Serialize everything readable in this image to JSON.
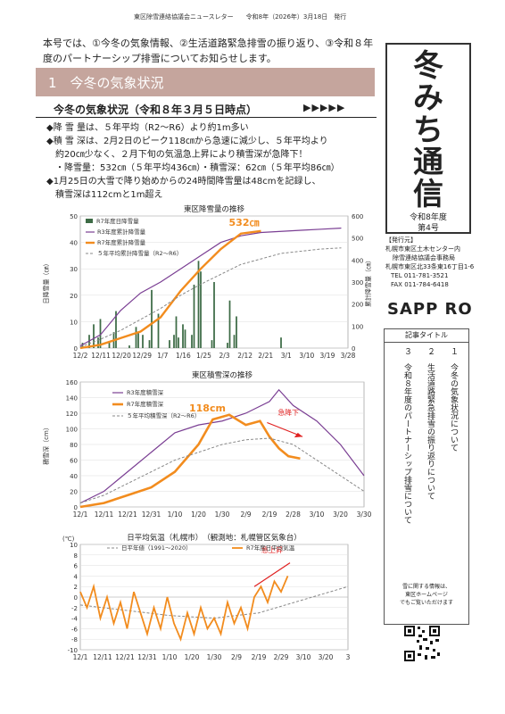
{
  "header": {
    "text": "東区除雪連絡協議会ニュースレター　　令和8年（2026年）3月18日　発行"
  },
  "intro": {
    "line1": "本号では、①今冬の気象情報、②生活道路緊急排雪の振り返り、③令和８年",
    "line2": "度のパートナーシップ排雪についてお知らせします。"
  },
  "section1": {
    "title": "1　今冬の気象状況"
  },
  "subheading": {
    "title": "今冬の気象状況（令和８年３月５日時点）",
    "arrows": "▶▶▶▶▶"
  },
  "bullets": {
    "b1": "◆降 雪 量は、５年平均（R2～R6）より約1m多い",
    "b2a": "◆積 雪 深は、2月2日のピーク118㎝から急速に減少し、５年平均より",
    "b2b": "約20㎝少なく、２月下旬の気温急上昇により積雪深が急降下！",
    "b3": "・降雪量：532㎝（５年平均436㎝）・積雪深：62㎝（５年平均86㎝）",
    "b4a": "◆1月25日の大雪で降り始めからの24時間降雪量は48cmを記録し、",
    "b4b": "積雪深は112cmと1m超え"
  },
  "title_block": {
    "title_chars": [
      "冬",
      "み",
      "ち",
      "通",
      "信"
    ],
    "year": "令和8年度",
    "issue": "第4号"
  },
  "publisher": {
    "label": "【発行元】",
    "l1": "札幌市東区土木センター内",
    "l2": "除雪連絡協議会事務局",
    "l3": "札幌市東区北33条東16丁目1-6",
    "tel": "TEL 011-781-3521",
    "fax": "FAX 011-784-6418",
    "logo": "SAPP RO"
  },
  "toc": {
    "heading": "記事タイトル",
    "c1": "１　今冬の気象状況について",
    "c2": "２　生活道路緊急排雪の振り返りについて",
    "c3": "３　令和８年度のパートナーシップ排雪について",
    "note1": "雪に関する情報は、",
    "note2": "東区ホームページ",
    "note3": "でもご覧いただけます"
  },
  "colors": {
    "accent_bar": "#c5a59d",
    "orange": "#f28c1e",
    "purple": "#7a3e93",
    "green": "#3d6b45"
  },
  "chart_data": [
    {
      "type": "bar",
      "title": "東区降雪量の推移",
      "ylabel": "日降雪量（㎝）",
      "y2label": "累計降雪量（㎝）",
      "ylim": [
        0,
        50
      ],
      "y2lim": [
        0,
        600
      ],
      "yticks": [
        "50",
        "40",
        "30",
        "20",
        "10",
        "0"
      ],
      "y2ticks": [
        "600",
        "500",
        "400",
        "300",
        "200",
        "100",
        "0"
      ],
      "xticks": [
        "12/2",
        "12/11",
        "12/20",
        "12/29",
        "1/7",
        "1/16",
        "1/25",
        "2/3",
        "2/12",
        "2/21",
        "3/1",
        "3/10",
        "3/19",
        "3/28"
      ],
      "annotation": "532㎝",
      "series": [
        {
          "name": "R7年度日降雪量",
          "kind": "bar",
          "values": [
            0,
            2,
            0,
            0,
            5,
            0,
            9,
            0,
            4,
            11,
            0,
            0,
            0,
            2,
            0,
            6,
            14,
            0,
            0,
            0,
            0,
            0,
            1,
            0,
            0,
            8,
            6,
            0,
            5,
            0,
            0,
            3,
            22,
            0,
            0,
            13,
            0,
            0,
            0,
            0,
            3,
            0,
            5,
            12,
            4,
            0,
            9,
            7,
            0,
            0,
            5,
            24,
            0,
            33,
            29,
            0,
            0,
            0,
            0,
            3,
            25,
            0,
            0,
            0,
            0,
            0,
            2,
            18,
            0,
            5,
            12,
            0,
            0,
            0,
            0,
            0,
            0,
            0,
            0,
            0,
            0,
            0,
            0,
            0,
            0,
            0,
            0,
            0,
            0,
            0,
            4,
            0,
            0,
            0,
            0,
            0,
            0,
            0,
            0,
            0,
            0,
            0,
            0,
            0,
            0,
            0,
            0,
            0,
            0,
            0,
            0,
            0,
            0,
            0,
            0,
            0,
            0,
            0
          ]
        },
        {
          "name": "R3年度累計降雪量",
          "kind": "line",
          "axis": "y2",
          "values": [
            {
              "day": 0,
              "v": 10
            },
            {
              "day": 9,
              "v": 60
            },
            {
              "day": 18,
              "v": 170
            },
            {
              "day": 27,
              "v": 250
            },
            {
              "day": 36,
              "v": 300
            },
            {
              "day": 45,
              "v": 360
            },
            {
              "day": 54,
              "v": 420
            },
            {
              "day": 63,
              "v": 480
            },
            {
              "day": 72,
              "v": 510
            },
            {
              "day": 81,
              "v": 525
            },
            {
              "day": 90,
              "v": 530
            },
            {
              "day": 99,
              "v": 535
            },
            {
              "day": 108,
              "v": 540
            },
            {
              "day": 117,
              "v": 545
            }
          ]
        },
        {
          "name": "R7年度累計降雪量",
          "kind": "line",
          "axis": "y2",
          "values": [
            {
              "day": 0,
              "v": 0
            },
            {
              "day": 9,
              "v": 15
            },
            {
              "day": 18,
              "v": 45
            },
            {
              "day": 27,
              "v": 75
            },
            {
              "day": 36,
              "v": 140
            },
            {
              "day": 45,
              "v": 260
            },
            {
              "day": 54,
              "v": 360
            },
            {
              "day": 63,
              "v": 450
            },
            {
              "day": 72,
              "v": 520
            },
            {
              "day": 81,
              "v": 532
            }
          ]
        },
        {
          "name": "５年平均累計降雪量（R2～R6）",
          "kind": "line",
          "axis": "y2",
          "values": [
            {
              "day": 0,
              "v": 5
            },
            {
              "day": 9,
              "v": 40
            },
            {
              "day": 18,
              "v": 80
            },
            {
              "day": 27,
              "v": 130
            },
            {
              "day": 36,
              "v": 180
            },
            {
              "day": 45,
              "v": 240
            },
            {
              "day": 54,
              "v": 290
            },
            {
              "day": 63,
              "v": 335
            },
            {
              "day": 72,
              "v": 380
            },
            {
              "day": 81,
              "v": 405
            },
            {
              "day": 90,
              "v": 430
            },
            {
              "day": 99,
              "v": 440
            },
            {
              "day": 108,
              "v": 450
            },
            {
              "day": 117,
              "v": 455
            }
          ]
        }
      ]
    },
    {
      "type": "line",
      "title": "東区積雪深の推移",
      "ylabel": "積雪深（cm）",
      "ylim": [
        0,
        160
      ],
      "yticks": [
        "160",
        "140",
        "120",
        "100",
        "80",
        "60",
        "40",
        "20",
        "0"
      ],
      "xticks": [
        "12/1",
        "12/11",
        "12/21",
        "12/31",
        "1/10",
        "1/20",
        "1/30",
        "2/9",
        "2/19",
        "2/28",
        "3/10",
        "3/20",
        "3/30"
      ],
      "annotation": "118cm",
      "annotation2": "急降下",
      "series": [
        {
          "name": "R3年度積雪深",
          "values": [
            {
              "day": 0,
              "v": 5
            },
            {
              "day": 10,
              "v": 20
            },
            {
              "day": 20,
              "v": 45
            },
            {
              "day": 30,
              "v": 70
            },
            {
              "day": 40,
              "v": 95
            },
            {
              "day": 50,
              "v": 105
            },
            {
              "day": 60,
              "v": 110
            },
            {
              "day": 70,
              "v": 120
            },
            {
              "day": 80,
              "v": 135
            },
            {
              "day": 84,
              "v": 150
            },
            {
              "day": 90,
              "v": 130
            },
            {
              "day": 100,
              "v": 110
            },
            {
              "day": 110,
              "v": 80
            },
            {
              "day": 120,
              "v": 40
            }
          ]
        },
        {
          "name": "R7年度積雪深",
          "values": [
            {
              "day": 0,
              "v": 0
            },
            {
              "day": 10,
              "v": 5
            },
            {
              "day": 20,
              "v": 15
            },
            {
              "day": 30,
              "v": 25
            },
            {
              "day": 40,
              "v": 45
            },
            {
              "day": 50,
              "v": 80
            },
            {
              "day": 56,
              "v": 112
            },
            {
              "day": 63,
              "v": 118
            },
            {
              "day": 70,
              "v": 105
            },
            {
              "day": 76,
              "v": 110
            },
            {
              "day": 80,
              "v": 90
            },
            {
              "day": 84,
              "v": 75
            },
            {
              "day": 88,
              "v": 65
            },
            {
              "day": 93,
              "v": 62
            }
          ]
        },
        {
          "name": "５年平均積雪深（R2～R6）",
          "values": [
            {
              "day": 0,
              "v": 5
            },
            {
              "day": 10,
              "v": 15
            },
            {
              "day": 20,
              "v": 30
            },
            {
              "day": 30,
              "v": 45
            },
            {
              "day": 40,
              "v": 60
            },
            {
              "day": 50,
              "v": 70
            },
            {
              "day": 60,
              "v": 80
            },
            {
              "day": 70,
              "v": 86
            },
            {
              "day": 80,
              "v": 88
            },
            {
              "day": 90,
              "v": 80
            },
            {
              "day": 100,
              "v": 60
            },
            {
              "day": 110,
              "v": 40
            },
            {
              "day": 120,
              "v": 20
            }
          ]
        }
      ]
    },
    {
      "type": "line",
      "title": "日平均気温（札幌市）　（観測地：札幌管区気象台）",
      "unit": "(℃)",
      "ylim": [
        -10,
        10
      ],
      "yticks": [
        "10",
        "8",
        "6",
        "4",
        "2",
        "0",
        "-2",
        "-4",
        "-6",
        "-8",
        "-10"
      ],
      "xticks": [
        "12/1",
        "12/11",
        "12/21",
        "12/31",
        "1/10",
        "1/20",
        "1/30",
        "2/9",
        "2/19",
        "2/29",
        "3/10",
        "3/20",
        "3"
      ],
      "annotation": "急上昇",
      "series": [
        {
          "name": "日平年値（1991～2020）",
          "values": [
            {
              "day": 0,
              "v": -1.5
            },
            {
              "day": 20,
              "v": -2.5
            },
            {
              "day": 40,
              "v": -3.5
            },
            {
              "day": 60,
              "v": -4
            },
            {
              "day": 80,
              "v": -3
            },
            {
              "day": 100,
              "v": -0.5
            },
            {
              "day": 120,
              "v": 2
            }
          ]
        },
        {
          "name": "R7年度日平均気温",
          "values": [
            {
              "day": 0,
              "v": 1
            },
            {
              "day": 3,
              "v": -2
            },
            {
              "day": 6,
              "v": 2
            },
            {
              "day": 9,
              "v": -4
            },
            {
              "day": 12,
              "v": 0
            },
            {
              "day": 15,
              "v": -5
            },
            {
              "day": 18,
              "v": -1
            },
            {
              "day": 21,
              "v": -6
            },
            {
              "day": 24,
              "v": 1
            },
            {
              "day": 27,
              "v": -3
            },
            {
              "day": 30,
              "v": -7
            },
            {
              "day": 33,
              "v": -2
            },
            {
              "day": 36,
              "v": -6
            },
            {
              "day": 39,
              "v": 0
            },
            {
              "day": 42,
              "v": -5
            },
            {
              "day": 45,
              "v": -8
            },
            {
              "day": 48,
              "v": -3
            },
            {
              "day": 51,
              "v": -7
            },
            {
              "day": 54,
              "v": -2
            },
            {
              "day": 57,
              "v": -6
            },
            {
              "day": 60,
              "v": -4
            },
            {
              "day": 63,
              "v": -7
            },
            {
              "day": 66,
              "v": -1
            },
            {
              "day": 69,
              "v": -5
            },
            {
              "day": 72,
              "v": -2
            },
            {
              "day": 75,
              "v": -6
            },
            {
              "day": 78,
              "v": 0
            },
            {
              "day": 81,
              "v": 2
            },
            {
              "day": 84,
              "v": -1
            },
            {
              "day": 87,
              "v": 3
            },
            {
              "day": 90,
              "v": 1
            },
            {
              "day": 93,
              "v": 4
            }
          ]
        }
      ]
    }
  ]
}
